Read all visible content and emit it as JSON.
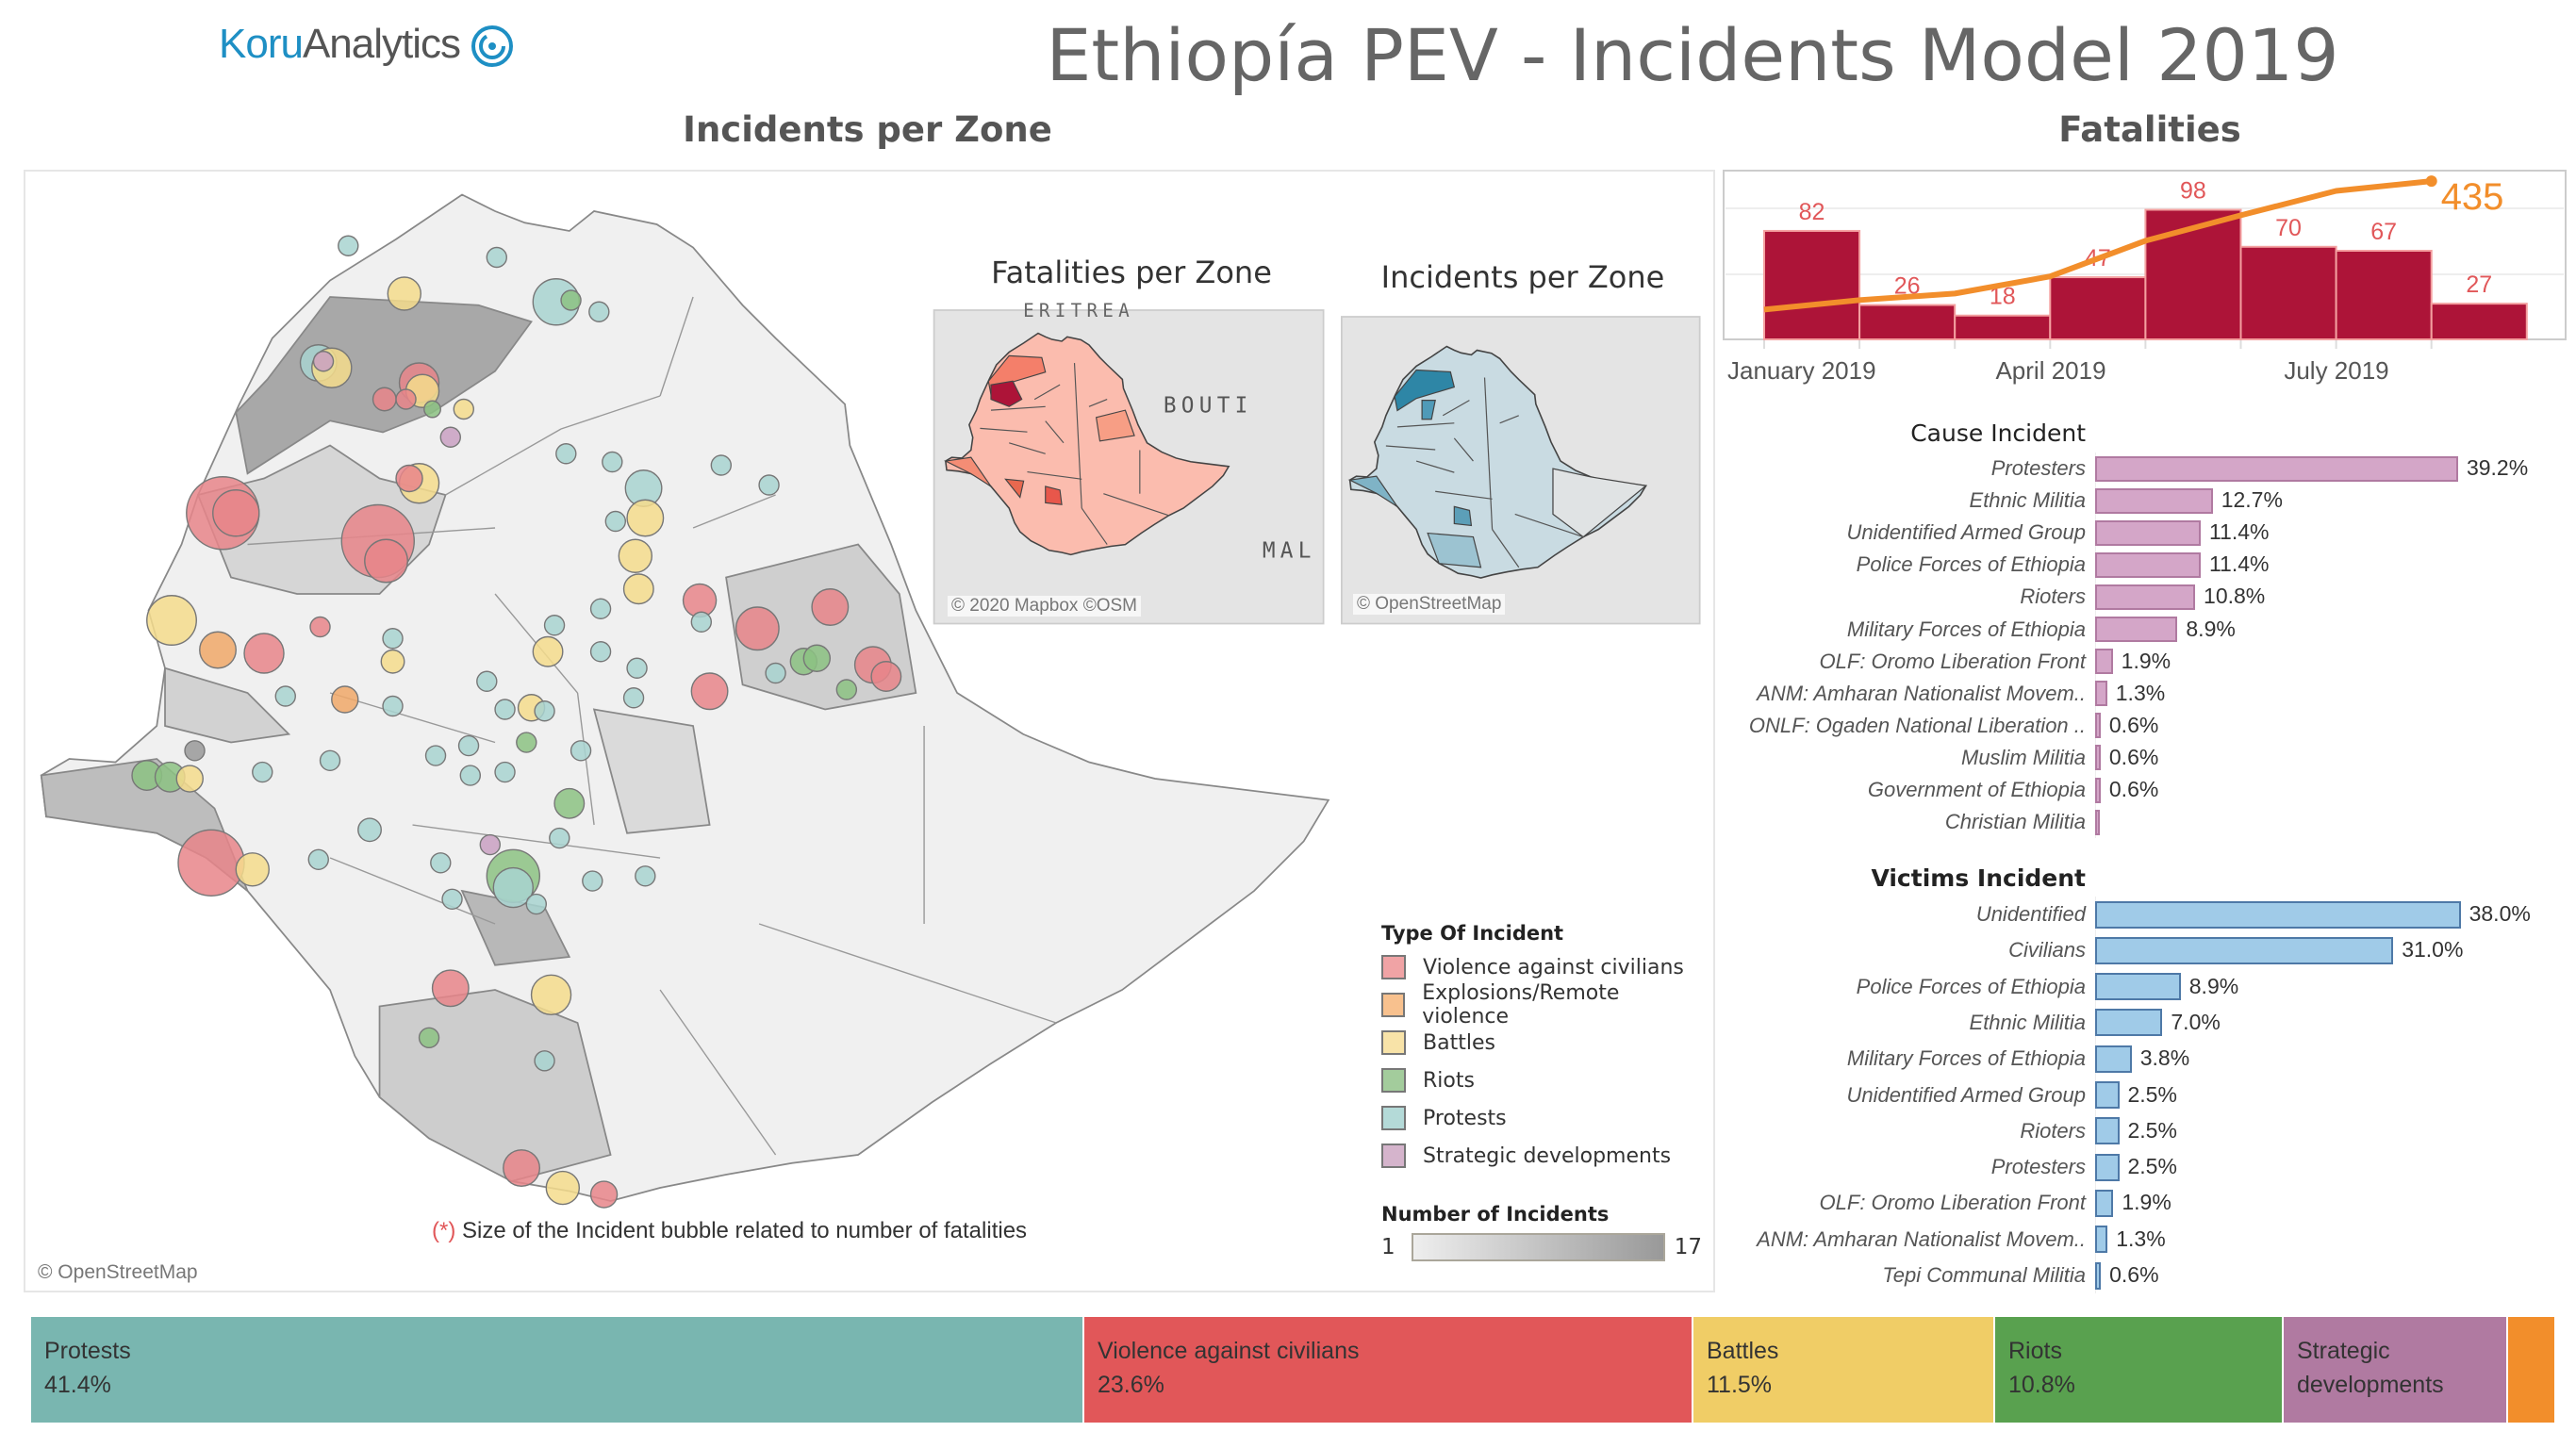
{
  "header": {
    "logo_part1": "Koru",
    "logo_part2": "Analytics",
    "title": "Ethiopía PEV - Incidents Model 2019"
  },
  "map_section": {
    "title": "Incidents per Zone",
    "attribution": "© OpenStreetMap",
    "footnote_marker": "(*)",
    "footnote": "Size of the Incident bubble related to number of fatalities",
    "fatalities_map": {
      "title": "Fatalities per Zone",
      "attribution": "© 2020 Mapbox ©OSM",
      "labels": [
        "ERITREA",
        "BOUTI",
        "MAL"
      ]
    },
    "incidents_map": {
      "title": "Incidents per Zone",
      "attribution": "© OpenStreetMap"
    }
  },
  "legend": {
    "type_title": "Type Of Incident",
    "types": [
      {
        "label": "Violence against civilians",
        "color": "#f0a3a5"
      },
      {
        "label": "Explosions/Remote violence",
        "color": "#f8c18e"
      },
      {
        "label": "Battles",
        "color": "#f8e3a8"
      },
      {
        "label": "Riots",
        "color": "#a3cc9c"
      },
      {
        "label": "Protests",
        "color": "#b4dad8"
      },
      {
        "label": "Strategic developments",
        "color": "#d5b4cc"
      }
    ],
    "count_title": "Number of Incidents",
    "count_min": "1",
    "count_max": "17"
  },
  "fatalities": {
    "title": "Fatalities",
    "chart_data": {
      "type": "bar",
      "x_ticks": [
        "January 2019",
        "April 2019",
        "July 2019"
      ],
      "values": [
        82,
        26,
        18,
        47,
        98,
        70,
        67,
        27
      ],
      "cumulative": [
        82,
        108,
        126,
        173,
        271,
        341,
        408,
        435
      ],
      "total_label": "435",
      "bar_color": "#ad1438",
      "line_color": "#f28e2b",
      "label_color": "#e15759"
    }
  },
  "cause": {
    "title": "Cause Incident",
    "chart_data": {
      "type": "bar",
      "orientation": "horizontal",
      "color": "#d4a6c8",
      "items": [
        {
          "label": "Protesters",
          "value": 39.2,
          "text": "39.2%"
        },
        {
          "label": "Ethnic Militia",
          "value": 12.7,
          "text": "12.7%"
        },
        {
          "label": "Unidentified Armed Group",
          "value": 11.4,
          "text": "11.4%"
        },
        {
          "label": "Police Forces of Ethiopia",
          "value": 11.4,
          "text": "11.4%"
        },
        {
          "label": "Rioters",
          "value": 10.8,
          "text": "10.8%"
        },
        {
          "label": "Military Forces of Ethiopia",
          "value": 8.9,
          "text": "8.9%"
        },
        {
          "label": "OLF: Oromo Liberation Front",
          "value": 1.9,
          "text": "1.9%"
        },
        {
          "label": "ANM: Amharan Nationalist Movem..",
          "value": 1.3,
          "text": "1.3%"
        },
        {
          "label": "ONLF: Ogaden National Liberation ..",
          "value": 0.6,
          "text": "0.6%"
        },
        {
          "label": "Muslim Militia",
          "value": 0.6,
          "text": "0.6%"
        },
        {
          "label": "Government of Ethiopia",
          "value": 0.6,
          "text": "0.6%"
        },
        {
          "label": "Christian Militia",
          "value": 0.3,
          "text": ""
        }
      ]
    }
  },
  "victims": {
    "title": "Victims Incident",
    "chart_data": {
      "type": "bar",
      "orientation": "horizontal",
      "color": "#a0cbe8",
      "items": [
        {
          "label": "Unidentified",
          "value": 38.0,
          "text": "38.0%"
        },
        {
          "label": "Civilians",
          "value": 31.0,
          "text": "31.0%"
        },
        {
          "label": "Police Forces of Ethiopia",
          "value": 8.9,
          "text": "8.9%"
        },
        {
          "label": "Ethnic Militia",
          "value": 7.0,
          "text": "7.0%"
        },
        {
          "label": "Military Forces of Ethiopia",
          "value": 3.8,
          "text": "3.8%"
        },
        {
          "label": "Unidentified Armed Group",
          "value": 2.5,
          "text": "2.5%"
        },
        {
          "label": "Rioters",
          "value": 2.5,
          "text": "2.5%"
        },
        {
          "label": "Protesters",
          "value": 2.5,
          "text": "2.5%"
        },
        {
          "label": "OLF: Oromo Liberation Front",
          "value": 1.9,
          "text": "1.9%"
        },
        {
          "label": "ANM: Amharan Nationalist Movem..",
          "value": 1.3,
          "text": "1.3%"
        },
        {
          "label": "Tepi Communal Militia",
          "value": 0.6,
          "text": "0.6%"
        }
      ]
    }
  },
  "treemap": {
    "chart_data": {
      "type": "treemap",
      "items": [
        {
          "label": "Protests",
          "value": 41.4,
          "text": "41.4%",
          "color": "#79b6b0"
        },
        {
          "label": "Violence against civilians",
          "value": 23.6,
          "text": "23.6%",
          "color": "#e15759"
        },
        {
          "label": "Battles",
          "value": 11.5,
          "text": "11.5%",
          "color": "#f0cd66"
        },
        {
          "label": "Riots",
          "value": 10.8,
          "text": "10.8%",
          "color": "#59a14f"
        },
        {
          "label": "Strategic developments",
          "value": 8.9,
          "text": "",
          "color": "#b07aa1"
        },
        {
          "label": "",
          "value": 1.9,
          "text": "",
          "color": "#f28e2b"
        }
      ]
    }
  }
}
